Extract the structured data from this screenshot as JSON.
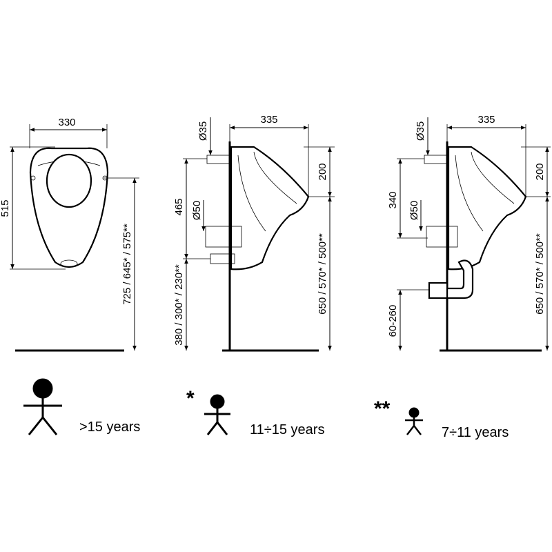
{
  "views": [
    {
      "dimensions": [
        "330",
        "515",
        "725 / 645* / 575**"
      ]
    },
    {
      "dimensions": [
        "335",
        "Ø35",
        "200",
        "465",
        "Ø50",
        "380 / 300* / 230**",
        "650 / 570* / 500**"
      ]
    },
    {
      "dimensions": [
        "335",
        "Ø35",
        "200",
        "340",
        "Ø50",
        "60-260",
        "650 / 570* / 500**"
      ]
    }
  ],
  "legend": [
    {
      "label": ">15 years"
    },
    {
      "marker": "*",
      "label": "11÷15 years"
    },
    {
      "marker": "**",
      "label": "7÷11 years"
    }
  ]
}
